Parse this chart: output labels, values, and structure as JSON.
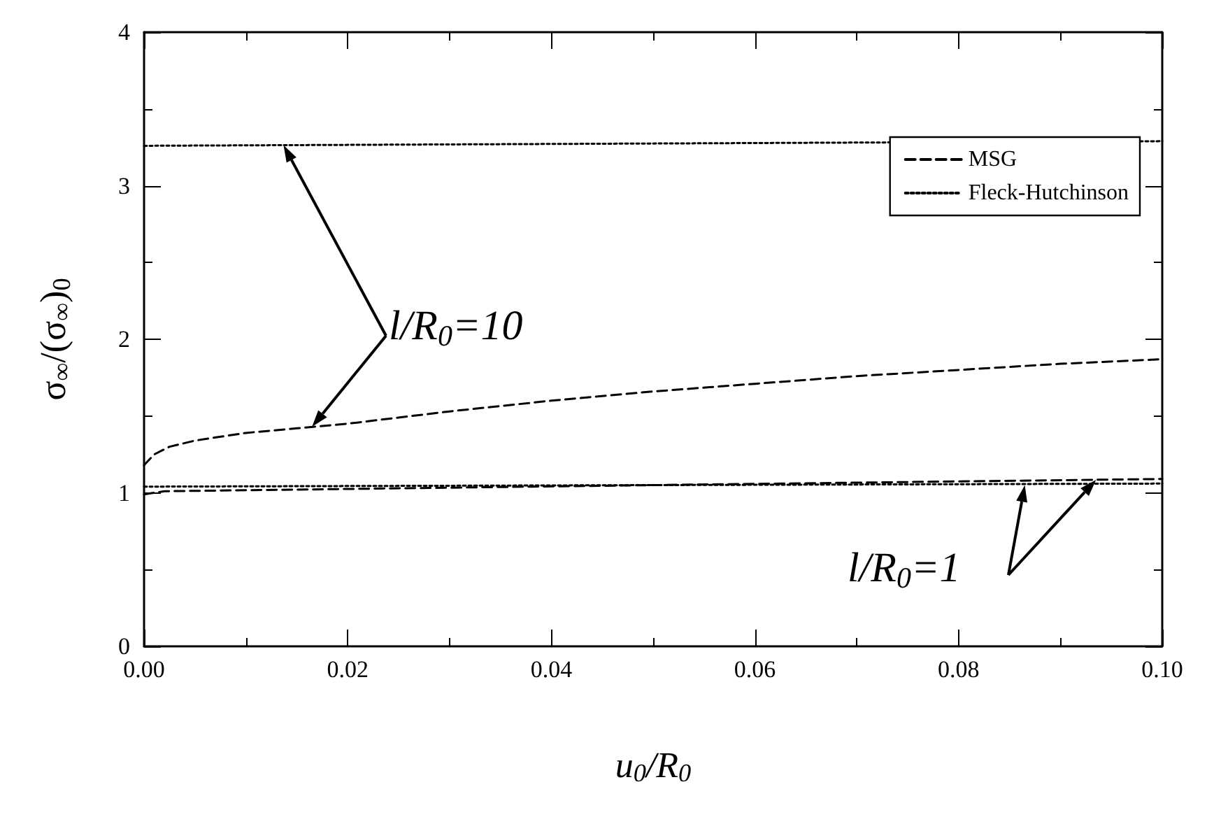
{
  "chart_data": {
    "type": "line",
    "xlabel": "u$_{0}$/R$_{0}$",
    "ylabel": "σ$_{∞}$/(σ$_{∞}$)$_{0}$",
    "xlim": [
      0,
      0.1
    ],
    "xticks": [
      {
        "value": 0,
        "label": "0.00"
      },
      {
        "value": 0.02,
        "label": "0.02"
      },
      {
        "value": 0.04,
        "label": "0.04"
      },
      {
        "value": 0.06,
        "label": "0.06"
      },
      {
        "value": 0.08,
        "label": "0.08"
      },
      {
        "value": 0.1,
        "label": "0.10"
      }
    ],
    "ylim": [
      0,
      4
    ],
    "yticks": [
      0,
      1,
      2,
      3,
      4
    ],
    "grid": false,
    "legend": "top right",
    "marker": "none",
    "series": [
      {
        "name": "MSG",
        "color": "#000000",
        "line_style": "dashed",
        "x": [
          0,
          0.001,
          0.0025,
          0.005,
          0.01,
          0.015,
          0.02,
          0.03,
          0.04,
          0.05,
          0.06,
          0.07,
          0.08,
          0.09,
          0.1
        ],
        "values": [
          1.18,
          1.25,
          1.3,
          1.34,
          1.39,
          1.42,
          1.45,
          1.53,
          1.6,
          1.66,
          1.71,
          1.76,
          1.8,
          1.84,
          1.87
        ]
      },
      {
        "name": "Fleck-Hutchinson",
        "color": "#000000",
        "line_style": "dotted",
        "x": [
          0,
          0.1
        ],
        "values": [
          3.26,
          3.29
        ]
      },
      {
        "color": "#000000",
        "line_style": "dashed",
        "x": [
          0,
          0.002,
          0.05,
          0.1
        ],
        "values": [
          0.99,
          1.01,
          1.05,
          1.09
        ]
      },
      {
        "color": "#000000",
        "line_style": "dotted",
        "x": [
          0,
          0.1
        ],
        "values": [
          1.04,
          1.06
        ]
      }
    ],
    "annotations": [
      {
        "text": "l/R$_{0}$=10",
        "x": 0.0165,
        "y": 1.43
      },
      {
        "text": "l/R$_{0}$=1",
        "x": 0.0865,
        "y": 1.05
      }
    ]
  }
}
